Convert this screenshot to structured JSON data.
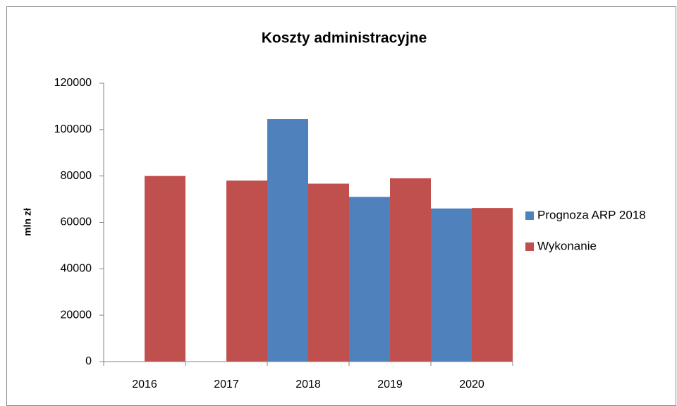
{
  "chart_data": {
    "type": "bar",
    "title": "Koszty administracyjne",
    "y_label": "mln zł",
    "categories": [
      "2016",
      "2017",
      "2018",
      "2019",
      "2020"
    ],
    "series": [
      {
        "name": "Prognoza ARP 2018",
        "color": "#4f81bd",
        "values": [
          null,
          null,
          104500,
          71000,
          66000
        ]
      },
      {
        "name": "Wykonanie",
        "color": "#c0504d",
        "values": [
          80000,
          78000,
          76700,
          79000,
          66200
        ]
      }
    ],
    "ylim": [
      0,
      120000
    ],
    "yticks": [
      0,
      20000,
      40000,
      60000,
      80000,
      100000,
      120000
    ],
    "grid": false,
    "legend": "right"
  }
}
